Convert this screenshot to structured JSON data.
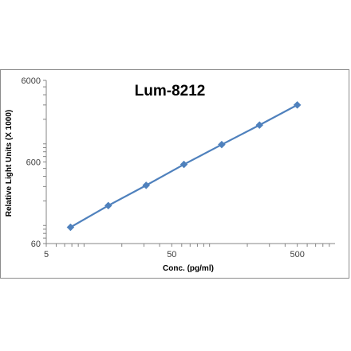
{
  "chart_data": {
    "type": "line",
    "title": "Lum-8212",
    "xlabel": "Conc. (pg/ml)",
    "ylabel": "Relative Light Units (X 1000)",
    "x_scale": "log",
    "y_scale": "log",
    "xlim": [
      5,
      1000
    ],
    "ylim": [
      60,
      6000
    ],
    "x_ticks": [
      "5",
      "50",
      "500"
    ],
    "y_ticks": [
      "60",
      "600",
      "6000"
    ],
    "grid": false,
    "legend": "none",
    "series": [
      {
        "marker": "diamond",
        "color": "#4f81bd",
        "x": [
          7.8,
          15.6,
          31.25,
          62.5,
          125,
          250,
          500
        ],
        "y": [
          95,
          175,
          310,
          560,
          980,
          1700,
          3000
        ]
      }
    ]
  }
}
